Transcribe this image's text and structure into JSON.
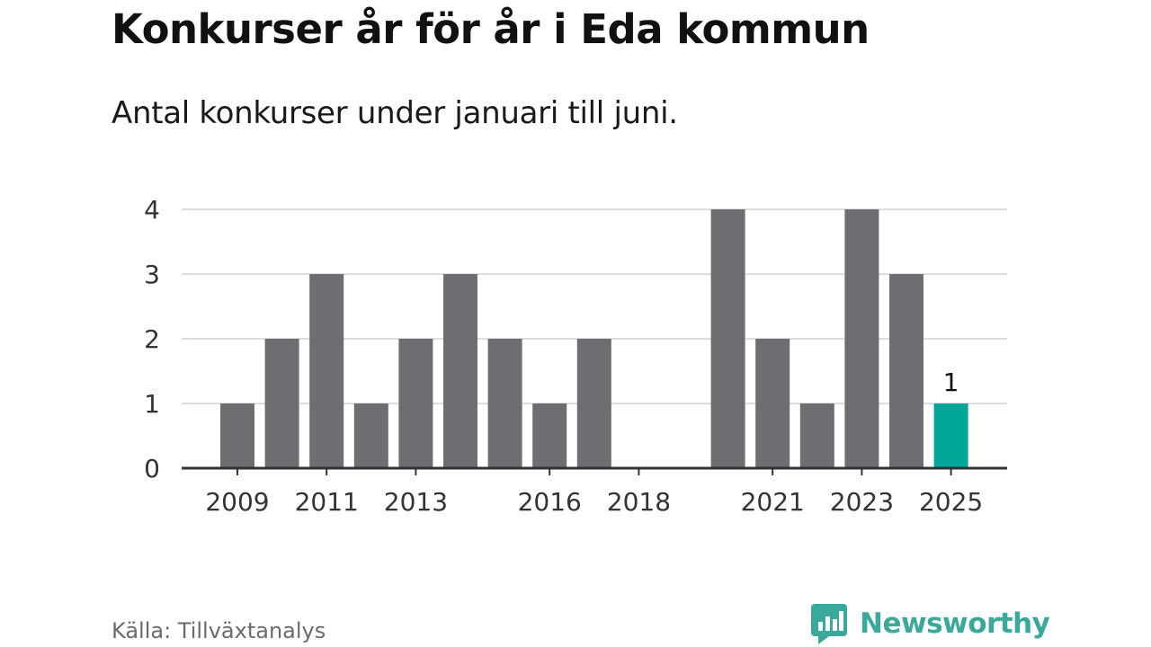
{
  "title": "Konkurser år för år i Eda kommun",
  "subtitle": "Antal konkurser under januari till juni.",
  "source": "Källa: Tillväxtanalys",
  "brand": {
    "name": "Newsworthy",
    "color": "#3aa89a",
    "icon": "newsworthy-logo-icon"
  },
  "colors": {
    "bar": "#6e6d72",
    "highlight": "#00a69a",
    "grid": "#dddddd",
    "axis": "#333333"
  },
  "chart_data": {
    "type": "bar",
    "categories": [
      "2009",
      "2010",
      "2011",
      "2012",
      "2013",
      "2014",
      "2015",
      "2016",
      "2017",
      "2018",
      "2019",
      "2020",
      "2021",
      "2022",
      "2023",
      "2024",
      "2025"
    ],
    "values": [
      1,
      2,
      3,
      1,
      2,
      3,
      2,
      1,
      2,
      0,
      0,
      4,
      2,
      1,
      4,
      3,
      1
    ],
    "x_tick_labels": [
      "2009",
      "2011",
      "2013",
      "2016",
      "2018",
      "2021",
      "2023",
      "2025"
    ],
    "y_ticks": [
      0,
      1,
      2,
      3,
      4
    ],
    "ylim": [
      0,
      4
    ],
    "grid": true,
    "highlight_category": "2025",
    "data_labels": [
      {
        "category": "2025",
        "text": "1"
      }
    ]
  }
}
